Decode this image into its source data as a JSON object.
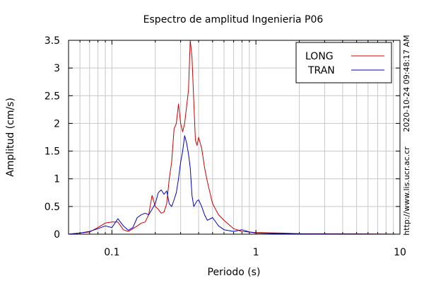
{
  "chart_data": {
    "type": "line",
    "title": "Espectro de amplitud Ingenieria P06",
    "xlabel": "Periodo (s)",
    "ylabel": "Amplitud (cm/s)",
    "x_scale": "log",
    "xlim": [
      0.05,
      10
    ],
    "ylim": [
      0,
      3.5
    ],
    "x_tick_labels": [
      "0.1",
      "1",
      "10"
    ],
    "y_tick_labels": [
      "0",
      "0.5",
      "1",
      "1.5",
      "2",
      "2.5",
      "3",
      "3.5"
    ],
    "grid": true,
    "legend_position": "top-right",
    "side_annotations": {
      "timestamp": "2020-10-24 09:48:17 AM",
      "url": "http://www.lis.ucr.ac.cr"
    },
    "series": [
      {
        "name": "LONG",
        "color": "#cc0000",
        "points": [
          [
            0.05,
            0.0
          ],
          [
            0.06,
            0.02
          ],
          [
            0.07,
            0.04
          ],
          [
            0.08,
            0.12
          ],
          [
            0.09,
            0.2
          ],
          [
            0.1,
            0.22
          ],
          [
            0.11,
            0.22
          ],
          [
            0.12,
            0.08
          ],
          [
            0.13,
            0.05
          ],
          [
            0.14,
            0.1
          ],
          [
            0.15,
            0.15
          ],
          [
            0.16,
            0.2
          ],
          [
            0.17,
            0.22
          ],
          [
            0.18,
            0.35
          ],
          [
            0.19,
            0.7
          ],
          [
            0.2,
            0.5
          ],
          [
            0.21,
            0.45
          ],
          [
            0.22,
            0.38
          ],
          [
            0.23,
            0.4
          ],
          [
            0.24,
            0.55
          ],
          [
            0.25,
            1.0
          ],
          [
            0.26,
            1.3
          ],
          [
            0.27,
            1.9
          ],
          [
            0.28,
            2.0
          ],
          [
            0.29,
            2.35
          ],
          [
            0.3,
            2.0
          ],
          [
            0.31,
            1.85
          ],
          [
            0.32,
            2.0
          ],
          [
            0.33,
            2.3
          ],
          [
            0.34,
            2.6
          ],
          [
            0.35,
            3.5
          ],
          [
            0.36,
            3.2
          ],
          [
            0.37,
            2.4
          ],
          [
            0.38,
            1.7
          ],
          [
            0.39,
            1.6
          ],
          [
            0.4,
            1.75
          ],
          [
            0.42,
            1.55
          ],
          [
            0.44,
            1.2
          ],
          [
            0.46,
            0.95
          ],
          [
            0.5,
            0.55
          ],
          [
            0.55,
            0.35
          ],
          [
            0.6,
            0.25
          ],
          [
            0.7,
            0.1
          ],
          [
            0.8,
            0.05
          ],
          [
            1.0,
            0.03
          ],
          [
            1.5,
            0.02
          ],
          [
            2.0,
            0.01
          ],
          [
            5.0,
            0.005
          ],
          [
            10.0,
            0.0
          ]
        ]
      },
      {
        "name": "TRAN",
        "color": "#0000cc",
        "points": [
          [
            0.05,
            0.0
          ],
          [
            0.06,
            0.02
          ],
          [
            0.07,
            0.05
          ],
          [
            0.08,
            0.1
          ],
          [
            0.09,
            0.15
          ],
          [
            0.1,
            0.12
          ],
          [
            0.11,
            0.28
          ],
          [
            0.12,
            0.15
          ],
          [
            0.13,
            0.07
          ],
          [
            0.14,
            0.12
          ],
          [
            0.15,
            0.3
          ],
          [
            0.16,
            0.35
          ],
          [
            0.17,
            0.38
          ],
          [
            0.18,
            0.35
          ],
          [
            0.19,
            0.45
          ],
          [
            0.2,
            0.55
          ],
          [
            0.21,
            0.75
          ],
          [
            0.22,
            0.8
          ],
          [
            0.23,
            0.72
          ],
          [
            0.24,
            0.78
          ],
          [
            0.25,
            0.55
          ],
          [
            0.26,
            0.5
          ],
          [
            0.27,
            0.62
          ],
          [
            0.28,
            0.75
          ],
          [
            0.29,
            1.0
          ],
          [
            0.3,
            1.3
          ],
          [
            0.31,
            1.5
          ],
          [
            0.32,
            1.78
          ],
          [
            0.33,
            1.65
          ],
          [
            0.34,
            1.45
          ],
          [
            0.35,
            1.2
          ],
          [
            0.36,
            0.7
          ],
          [
            0.37,
            0.5
          ],
          [
            0.38,
            0.55
          ],
          [
            0.39,
            0.6
          ],
          [
            0.4,
            0.62
          ],
          [
            0.42,
            0.5
          ],
          [
            0.44,
            0.35
          ],
          [
            0.46,
            0.25
          ],
          [
            0.5,
            0.3
          ],
          [
            0.55,
            0.15
          ],
          [
            0.6,
            0.08
          ],
          [
            0.7,
            0.05
          ],
          [
            0.8,
            0.08
          ],
          [
            0.9,
            0.04
          ],
          [
            1.0,
            0.02
          ],
          [
            1.5,
            0.01
          ],
          [
            2.0,
            0.005
          ],
          [
            5.0,
            0.002
          ],
          [
            10.0,
            0.0
          ]
        ]
      }
    ]
  }
}
